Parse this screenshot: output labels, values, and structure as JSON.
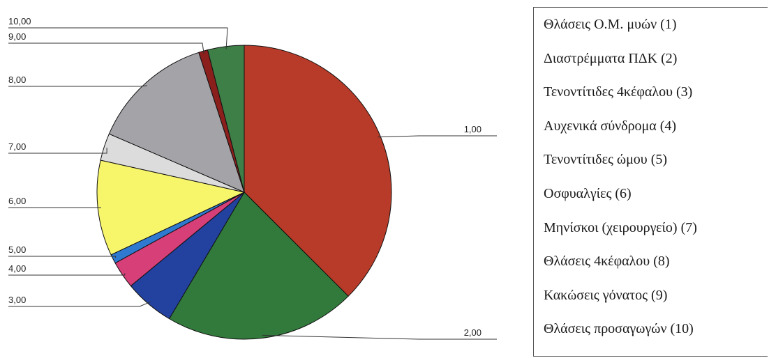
{
  "chart_data": {
    "type": "pie",
    "start_angle_deg": 0,
    "direction": "clockwise",
    "slices": [
      {
        "label": "1,00",
        "legend": "Θλάσεις Ο.Μ. μυών  (1)",
        "value": 37.5,
        "color": "#b83a28"
      },
      {
        "label": "2,00",
        "legend": "Διαστρέμματα ΠΔΚ  (2)",
        "value": 21.0,
        "color": "#317a3b"
      },
      {
        "label": "3,00",
        "legend": "Τενοντίτιδες 4κέφαλου (3)",
        "value": 5.5,
        "color": "#2342a0"
      },
      {
        "label": "4,00",
        "legend": "Αυχενικά σύνδρομα (4)",
        "value": 3.0,
        "color": "#d63f78"
      },
      {
        "label": "5,00",
        "legend": "Τενοντίτιδες ώμου (5)",
        "value": 1.0,
        "color": "#2f7ad0"
      },
      {
        "label": "6,00",
        "legend": "Οσφυαλγίες (6)",
        "value": 10.5,
        "color": "#f7f56a"
      },
      {
        "label": "7,00",
        "legend": "Μηνίσκοι (χειρουργείο) (7)",
        "value": 3.0,
        "color": "#dcdcdc"
      },
      {
        "label": "8,00",
        "legend": "Θλάσεις 4κέφαλου (8)",
        "value": 13.5,
        "color": "#a3a3a8"
      },
      {
        "label": "9,00",
        "legend": "Κακώσεις γόνατος (9)",
        "value": 1.0,
        "color": "#8a1f1c"
      },
      {
        "label": "10,00",
        "legend": "Θλάσεις προσαγωγών (10)",
        "value": 4.0,
        "color": "#3e7f47"
      }
    ]
  }
}
